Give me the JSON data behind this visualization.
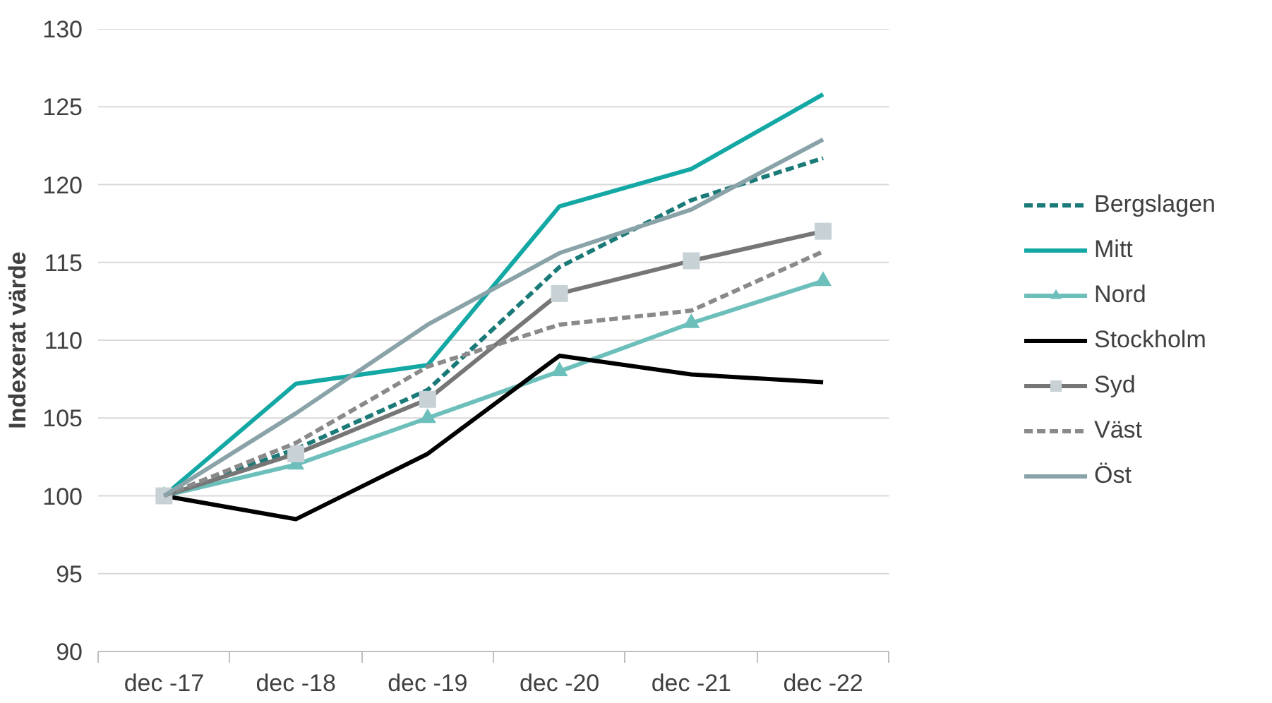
{
  "chart_data": {
    "type": "line",
    "ylabel": "Indexerat värde",
    "categories": [
      "dec -17",
      "dec -18",
      "dec -19",
      "dec -20",
      "dec -21",
      "dec -22"
    ],
    "ylim": [
      90,
      130
    ],
    "yticks": [
      90,
      95,
      100,
      105,
      110,
      115,
      120,
      125,
      130
    ],
    "grid": "y",
    "legend": "right",
    "series": [
      {
        "name": "Bergslagen",
        "color": "#1a7a78",
        "line_style": "dashed",
        "marker": "none",
        "values": [
          100,
          103.0,
          106.8,
          114.7,
          119.0,
          121.7
        ]
      },
      {
        "name": "Mitt",
        "color": "#14a8a4",
        "line_style": "solid",
        "marker": "none",
        "values": [
          100,
          107.2,
          108.4,
          118.6,
          121.0,
          125.8
        ]
      },
      {
        "name": "Nord",
        "color": "#6dbfbb",
        "line_style": "solid",
        "marker": "triangle",
        "values": [
          100,
          102.0,
          105.0,
          108.0,
          111.1,
          113.8
        ]
      },
      {
        "name": "Stockholm",
        "color": "#000000",
        "line_style": "solid",
        "marker": "none",
        "values": [
          100,
          98.5,
          102.7,
          109.0,
          107.8,
          107.3
        ]
      },
      {
        "name": "Syd",
        "color": "#767676",
        "line_style": "solid",
        "marker": "square",
        "values": [
          100,
          102.7,
          106.2,
          113.0,
          115.1,
          117.0
        ]
      },
      {
        "name": "Väst",
        "color": "#8a8a8a",
        "line_style": "dashed",
        "marker": "none",
        "values": [
          100,
          103.4,
          108.3,
          111.0,
          111.9,
          115.7
        ]
      },
      {
        "name": "Öst",
        "color": "#8aa3a8",
        "line_style": "solid",
        "marker": "none",
        "values": [
          100,
          105.3,
          111.0,
          115.6,
          118.4,
          122.9
        ]
      }
    ]
  }
}
